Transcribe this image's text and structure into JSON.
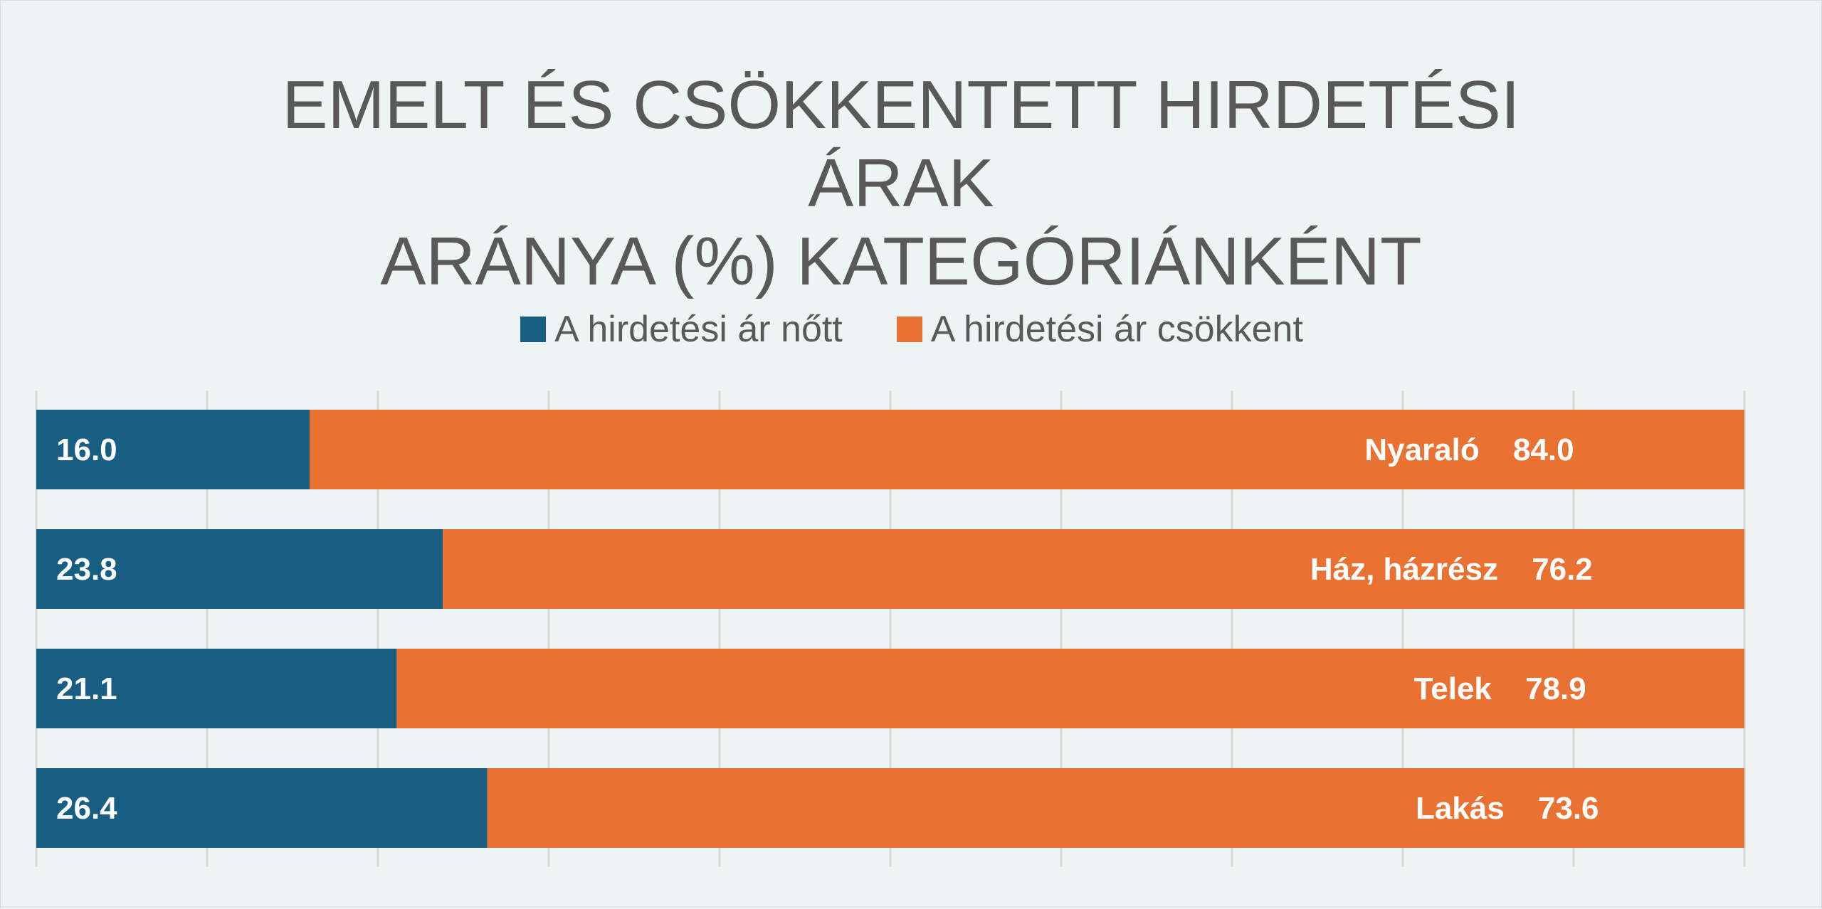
{
  "chart_data": {
    "type": "bar",
    "orientation": "horizontal",
    "stacked": true,
    "title_lines": [
      "EMELT ÉS CSÖKKENTETT HIRDETÉSI ÁRAK",
      "ARÁNYA (%) KATEGÓRIÁNKÉNT"
    ],
    "categories": [
      "Nyaraló",
      "Ház, házrész",
      "Telek",
      "Lakás"
    ],
    "series": [
      {
        "name": "A hirdetési ár nőtt",
        "color": "#185e82",
        "values": [
          16.0,
          23.8,
          21.1,
          26.4
        ],
        "labels": [
          "16.0",
          "23.8",
          "21.1",
          "26.4"
        ]
      },
      {
        "name": "A hirdetési ár csökkent",
        "color": "#e97233",
        "values": [
          84.0,
          76.2,
          78.9,
          73.6
        ],
        "labels": [
          "84.0",
          "76.2",
          "78.9",
          "73.6"
        ]
      }
    ],
    "xlim": [
      0,
      100
    ],
    "grid": true,
    "legend_position": "top"
  }
}
